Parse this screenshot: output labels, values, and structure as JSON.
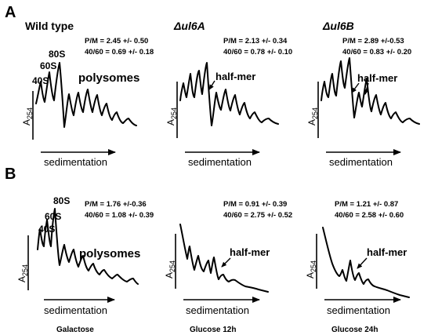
{
  "panel_a": {
    "letter": "A",
    "profiles": [
      {
        "title": "Wild type",
        "stat1": "P/M = 2.45 +/- 0.50",
        "stat2": "40/60 = 0.69 +/- 0.18",
        "peak_80s": "80S",
        "peak_60s": "60S",
        "peak_40s": "40S",
        "polysomes": "polysomes",
        "ylabel": "A",
        "ylabel_sub": "254",
        "xlabel": "sedimentation"
      },
      {
        "title": "Δul6A",
        "stat1": "P/M = 2.13 +/- 0.34",
        "stat2": "40/60 = 0.78 +/- 0.10",
        "half_mer": "half-mer",
        "ylabel": "A",
        "ylabel_sub": "254",
        "xlabel": "sedimentation"
      },
      {
        "title": "Δul6B",
        "stat1": "P/M = 2.89 +/-0.53",
        "stat2": "40/60 = 0.83 +/- 0.20",
        "half_mer": "half-mer",
        "ylabel": "A",
        "ylabel_sub": "254",
        "xlabel": "sedimentation"
      }
    ]
  },
  "panel_b": {
    "letter": "B",
    "profiles": [
      {
        "stat1": "P/M = 1.76 +/-0.36",
        "stat2": "40/60 = 1.08 +/- 0.39",
        "peak_80s": "80S",
        "peak_60s": "60S",
        "peak_40s": "40S",
        "polysomes": "polysomes",
        "ylabel": "A",
        "ylabel_sub": "254",
        "xlabel": "sedimentation",
        "condition": "Galactose"
      },
      {
        "stat1": "P/M = 0.91 +/- 0.39",
        "stat2": "40/60 = 2.75 +/- 0.52",
        "half_mer": "half-mer",
        "ylabel": "A",
        "ylabel_sub": "254",
        "xlabel": "sedimentation",
        "condition": "Glucose 12h"
      },
      {
        "stat1": "P/M = 1.21 +/- 0.87",
        "stat2": "40/60 = 2.58 +/- 0.60",
        "half_mer": "half-mer",
        "ylabel": "A",
        "ylabel_sub": "254",
        "xlabel": "sedimentation",
        "condition": "Glucose 24h"
      }
    ]
  }
}
